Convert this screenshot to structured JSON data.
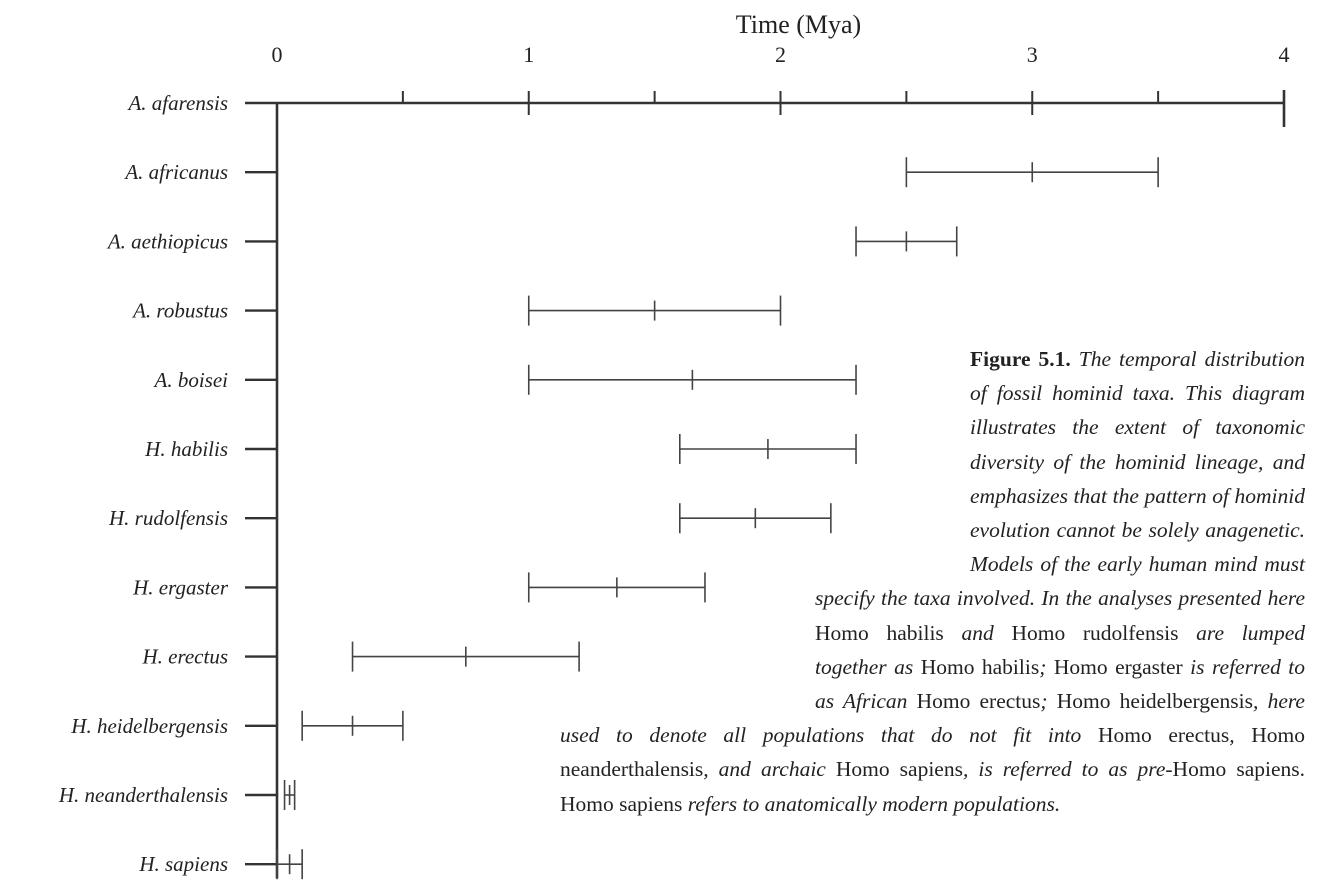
{
  "chart_data": {
    "type": "range",
    "title": "Time (Mya)",
    "xlabel": "Time (Mya)",
    "xlim": [
      0,
      4
    ],
    "xticks": [
      0,
      1,
      2,
      3,
      4
    ],
    "xminor_ticks": [
      0.5,
      1.5,
      2.5,
      3.5
    ],
    "categories": [
      "A. afarensis",
      "A. africanus",
      "A. aethiopicus",
      "A. robustus",
      "A. boisei",
      "H. habilis",
      "H. rudolfensis",
      "H. ergaster",
      "H. erectus",
      "H. heidelbergensis",
      "H. neanderthalensis",
      "H. sapiens"
    ],
    "ranges": [
      null,
      {
        "start": 2.5,
        "mid": 3.0,
        "end": 3.5
      },
      {
        "start": 2.3,
        "mid": 2.5,
        "end": 2.7
      },
      {
        "start": 1.0,
        "mid": 1.5,
        "end": 2.0
      },
      {
        "start": 1.0,
        "mid": 1.65,
        "end": 2.3
      },
      {
        "start": 1.6,
        "mid": 1.95,
        "end": 2.3
      },
      {
        "start": 1.6,
        "mid": 1.9,
        "end": 2.2
      },
      {
        "start": 1.0,
        "mid": 1.35,
        "end": 1.7
      },
      {
        "start": 0.3,
        "mid": 0.75,
        "end": 1.2
      },
      {
        "start": 0.1,
        "mid": 0.3,
        "end": 0.5
      },
      {
        "start": 0.03,
        "mid": 0.05,
        "end": 0.07
      },
      {
        "start": 0.0,
        "mid": 0.05,
        "end": 0.1
      }
    ]
  },
  "caption": {
    "label": "Figure 5.1.",
    "segments": [
      {
        "t": "The temporal distribution of fossil hominid taxa. This diagram illustrates the extent of taxonomic diversity of the hominid lineage, and emphasizes that the pattern of hominid evolution cannot be solely anagenetic. Models of the early human mind must specify the taxa involved. In the analyses presented here ",
        "i": true
      },
      {
        "t": "Homo habilis",
        "i": false
      },
      {
        "t": " and ",
        "i": true
      },
      {
        "t": "Homo rudolfensis",
        "i": false
      },
      {
        "t": " are lumped together as ",
        "i": true
      },
      {
        "t": "Homo habilis",
        "i": false
      },
      {
        "t": "; ",
        "i": true
      },
      {
        "t": "Homo ergaster",
        "i": false
      },
      {
        "t": " is referred to as ",
        "i": true
      },
      {
        "t": "African",
        "i": true
      },
      {
        "t": " Homo erectus",
        "i": false
      },
      {
        "t": "; ",
        "i": true
      },
      {
        "t": "Homo heidelbergensis",
        "i": false
      },
      {
        "t": ", here used to denote all populations that do not fit into ",
        "i": true
      },
      {
        "t": "Homo erectus",
        "i": false
      },
      {
        "t": ", ",
        "i": true
      },
      {
        "t": "Homo neanderthalensis",
        "i": false
      },
      {
        "t": ", and archaic ",
        "i": true
      },
      {
        "t": "Homo sapiens",
        "i": false
      },
      {
        "t": ", is referred to as pre-",
        "i": true
      },
      {
        "t": "Homo sapiens",
        "i": false
      },
      {
        "t": ". ",
        "i": false
      },
      {
        "t": "Homo sapiens",
        "i": false
      },
      {
        "t": " refers to anatomically modern populations.",
        "i": true
      }
    ]
  }
}
